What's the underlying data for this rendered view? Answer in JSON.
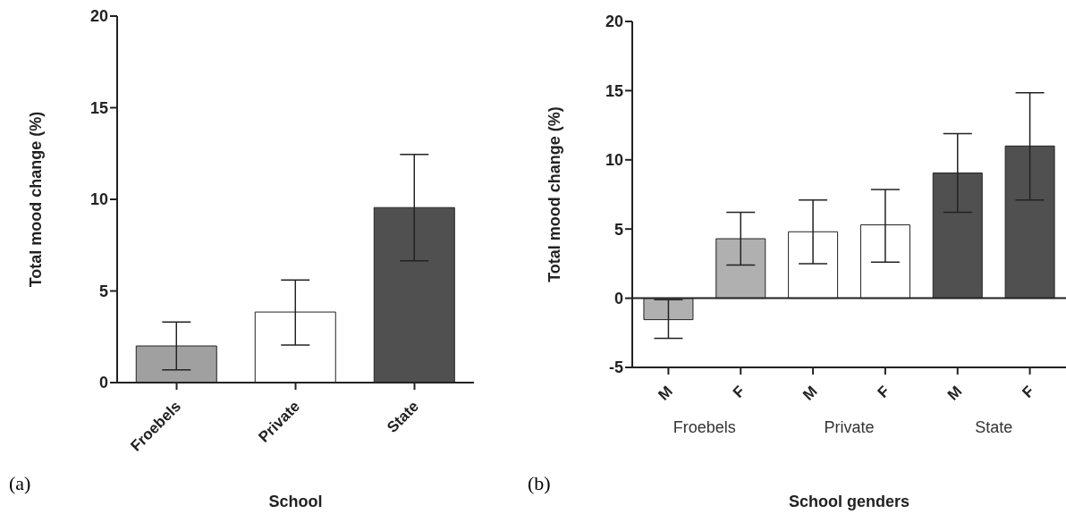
{
  "chart_data": [
    {
      "type": "bar",
      "xlabel": "School",
      "ylabel": "Total mood change (%)",
      "categories": [
        "Froebels",
        "Private",
        "State"
      ],
      "values": [
        2.0,
        3.85,
        9.55
      ],
      "colors": [
        "#a0a0a0",
        "#ffffff",
        "#505050"
      ],
      "errors": [
        [
          0.7,
          3.3
        ],
        [
          2.05,
          5.6
        ],
        [
          6.65,
          12.45
        ]
      ],
      "ylim": [
        0,
        20
      ],
      "yticks": [
        0,
        5,
        10,
        15,
        20
      ],
      "annotations": [
        "(a)"
      ]
    },
    {
      "type": "bar",
      "xlabel": "School genders",
      "ylabel": "Total mood change (%)",
      "categories": [
        "M",
        "F",
        "M",
        "F",
        "M",
        "F"
      ],
      "values": [
        -1.55,
        4.3,
        4.8,
        5.3,
        9.05,
        11.0
      ],
      "colors": [
        "#b0b0b0",
        "#b0b0b0",
        "#ffffff",
        "#ffffff",
        "#505050",
        "#505050"
      ],
      "errors": [
        [
          -2.9,
          -0.1
        ],
        [
          2.4,
          6.2
        ],
        [
          2.5,
          7.1
        ],
        [
          2.6,
          7.85
        ],
        [
          6.2,
          11.9
        ],
        [
          7.1,
          14.85
        ]
      ],
      "ylim": [
        -5,
        20
      ],
      "yticks": [
        -5,
        0,
        5,
        10,
        15,
        20
      ],
      "ref_lines": [
        {
          "axis": "y",
          "value": 0
        }
      ],
      "annotations": [
        "(b)",
        "Froebels",
        "Private",
        "State"
      ]
    }
  ]
}
